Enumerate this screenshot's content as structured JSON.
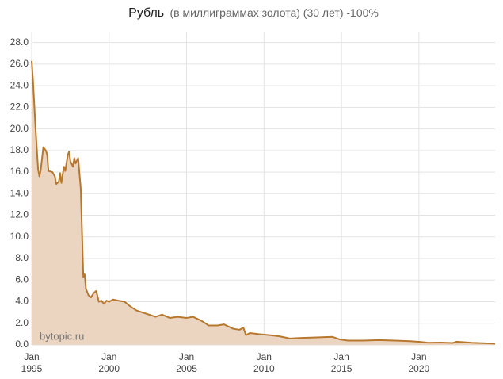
{
  "chart_data": {
    "type": "area",
    "title": "Рубль",
    "subtitle": "(в миллиграммах золота) (30 лет) -100%",
    "annotation": "bytopic.ru",
    "x": [
      "1995-01",
      "1995-02",
      "1995-04",
      "1995-06",
      "1995-07",
      "1995-08",
      "1995-10",
      "1995-12",
      "1996-01",
      "1996-02",
      "1996-05",
      "1996-07",
      "1996-08",
      "1996-10",
      "1996-11",
      "1996-12",
      "1997-02",
      "1997-03",
      "1997-05",
      "1997-06",
      "1997-07",
      "1997-09",
      "1997-10",
      "1997-11",
      "1998-01",
      "1998-03",
      "1998-05",
      "1998-06",
      "1998-07",
      "1998-09",
      "1998-11",
      "1999-01",
      "1999-03",
      "1999-05",
      "1999-07",
      "1999-09",
      "1999-11",
      "2000-01",
      "2000-04",
      "2000-08",
      "2001-01",
      "2001-05",
      "2001-10",
      "2002-03",
      "2002-08",
      "2003-01",
      "2003-06",
      "2003-12",
      "2004-06",
      "2005-01",
      "2005-06",
      "2006-01",
      "2006-06",
      "2007-01",
      "2007-06",
      "2008-01",
      "2008-06",
      "2008-09",
      "2008-11",
      "2009-02",
      "2009-09",
      "2010-06",
      "2011-01",
      "2011-09",
      "2012-06",
      "2013-06",
      "2014-06",
      "2014-12",
      "2015-06",
      "2016-06",
      "2017-06",
      "2018-06",
      "2019-06",
      "2020-03",
      "2020-08",
      "2021-06",
      "2022-03",
      "2022-06",
      "2023-06",
      "2024-06",
      "2024-12"
    ],
    "series": [
      {
        "name": "Рубль",
        "color": "#b7782e",
        "values": [
          26.3,
          24.5,
          20,
          16.2,
          15.6,
          16.2,
          18.3,
          18.0,
          17.6,
          16.1,
          16.0,
          15.6,
          14.9,
          15.1,
          15.9,
          15.0,
          16.5,
          16.1,
          17.6,
          17.9,
          17.0,
          16.5,
          17.3,
          16.8,
          17.3,
          14.5,
          6.3,
          6.6,
          5.2,
          4.6,
          4.4,
          4.8,
          5.0,
          4.0,
          4.1,
          3.8,
          4.1,
          4.0,
          4.2,
          4.1,
          4.0,
          3.6,
          3.2,
          3.0,
          2.8,
          2.6,
          2.8,
          2.5,
          2.6,
          2.5,
          2.6,
          2.2,
          1.8,
          1.8,
          1.9,
          1.5,
          1.4,
          1.6,
          0.9,
          1.1,
          1.0,
          0.9,
          0.8,
          0.6,
          0.65,
          0.7,
          0.75,
          0.5,
          0.4,
          0.4,
          0.45,
          0.4,
          0.35,
          0.28,
          0.2,
          0.22,
          0.18,
          0.3,
          0.2,
          0.15,
          0.12
        ]
      }
    ],
    "fill_color": "#ecd5c0",
    "xlim": [
      "1995-01",
      "2024-12"
    ],
    "xticks": [
      {
        "value": "1995-01",
        "label": "Jan 1995"
      },
      {
        "value": "2000-01",
        "label": "Jan 2000"
      },
      {
        "value": "2005-01",
        "label": "Jan 2005"
      },
      {
        "value": "2010-01",
        "label": "Jan 2010"
      },
      {
        "value": "2015-01",
        "label": "Jan 2015"
      },
      {
        "value": "2020-01",
        "label": "Jan 2020"
      }
    ],
    "ylim": [
      0,
      29
    ],
    "yticks": [
      {
        "value": 0,
        "label": "0.0"
      },
      {
        "value": 2,
        "label": "2.0"
      },
      {
        "value": 4,
        "label": "4.0"
      },
      {
        "value": 6,
        "label": "6.0"
      },
      {
        "value": 8,
        "label": "8.0"
      },
      {
        "value": 10,
        "label": "10.0"
      },
      {
        "value": 12,
        "label": "12.0"
      },
      {
        "value": 14,
        "label": "14.0"
      },
      {
        "value": 16,
        "label": "16.0"
      },
      {
        "value": 18,
        "label": "18.0"
      },
      {
        "value": 20,
        "label": "20.0"
      },
      {
        "value": 22,
        "label": "22.0"
      },
      {
        "value": 24,
        "label": "24.0"
      },
      {
        "value": 26,
        "label": "26.0"
      },
      {
        "value": 28,
        "label": "28.0"
      }
    ],
    "grid": true
  }
}
